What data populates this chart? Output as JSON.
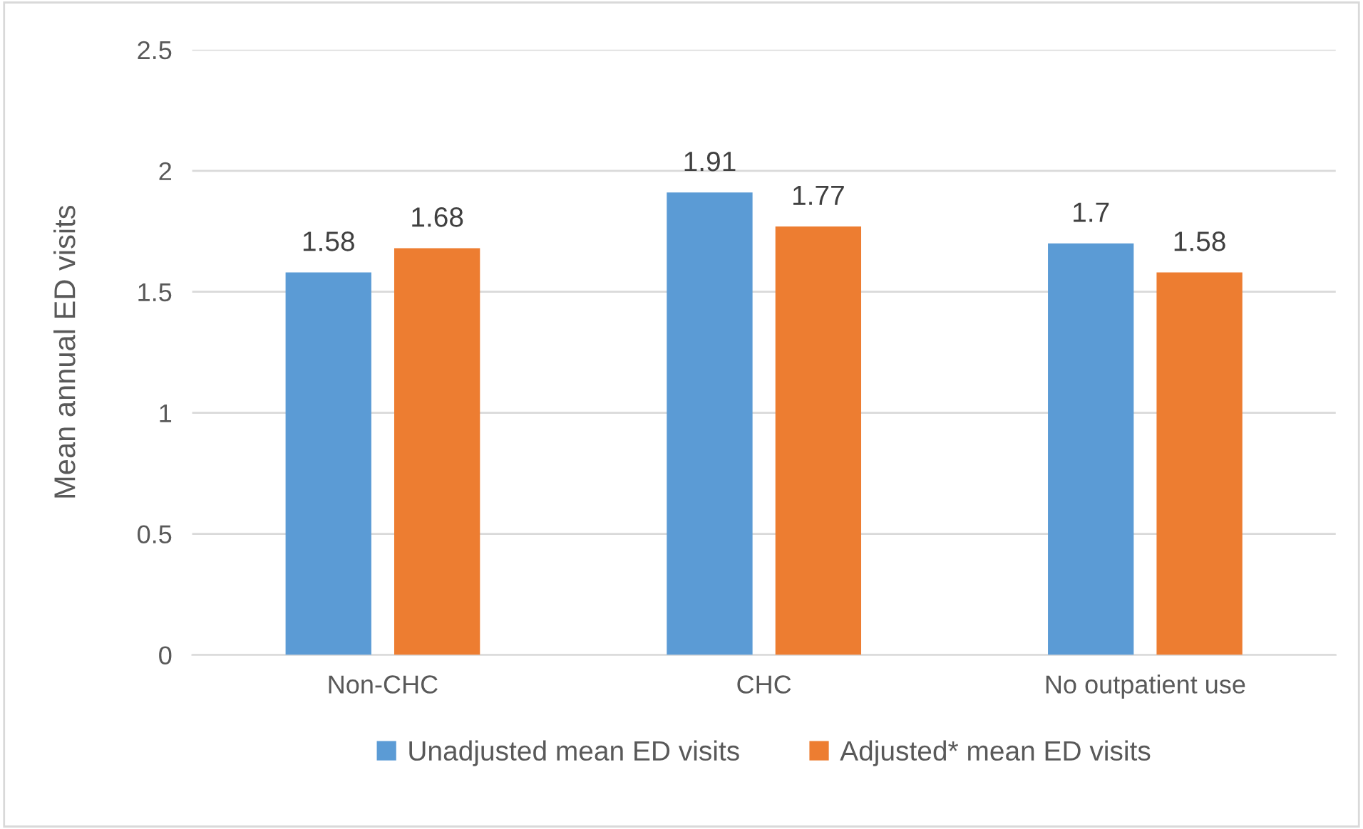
{
  "chart_data": {
    "type": "bar",
    "ylabel": "Mean annual ED visits",
    "categories": [
      "Non-CHC",
      "CHC",
      "No outpatient use"
    ],
    "series": [
      {
        "name": "Unadjusted mean ED visits",
        "color": "#5b9bd5",
        "values": [
          1.58,
          1.91,
          1.7
        ]
      },
      {
        "name": "Adjusted* mean ED visits",
        "color": "#ed7d31",
        "values": [
          1.68,
          1.77,
          1.58
        ]
      }
    ],
    "ylim": [
      0,
      2.5
    ],
    "yticks": [
      0,
      0.5,
      1,
      1.5,
      2,
      2.5
    ],
    "grid": "y",
    "legend": "bottom",
    "data_labels": true
  }
}
